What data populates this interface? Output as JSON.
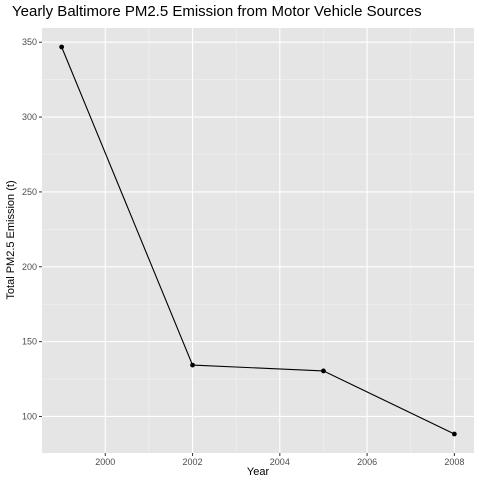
{
  "chart_data": {
    "type": "line",
    "title": "Yearly Baltimore PM2.5 Emission from Motor Vehicle Sources",
    "xlabel": "Year",
    "ylabel": "Total PM2.5 Emission (t)",
    "x": [
      1999,
      2002,
      2005,
      2008
    ],
    "series": [
      {
        "values": [
          346.82,
          134.31,
          130.43,
          88.28
        ]
      }
    ],
    "xlim": [
      1998.55,
      2008.45
    ],
    "ylim": [
      75.6,
      359.5
    ],
    "x_ticks": [
      2000,
      2002,
      2004,
      2006,
      2008
    ],
    "x_tick_labels": [
      "2000",
      "2002",
      "2004",
      "2006",
      "2008"
    ],
    "y_ticks": [
      100,
      150,
      200,
      250,
      300,
      350
    ],
    "y_tick_labels": [
      "100",
      "150",
      "200",
      "250",
      "300",
      "350"
    ],
    "grid": true,
    "markers": true,
    "colors": {
      "panel_background": "#e5e5e5",
      "grid_major": "#ffffff",
      "grid_minor": "#f2f2f2",
      "line": "#000000",
      "point": "#000000",
      "tick": "#333333"
    }
  }
}
